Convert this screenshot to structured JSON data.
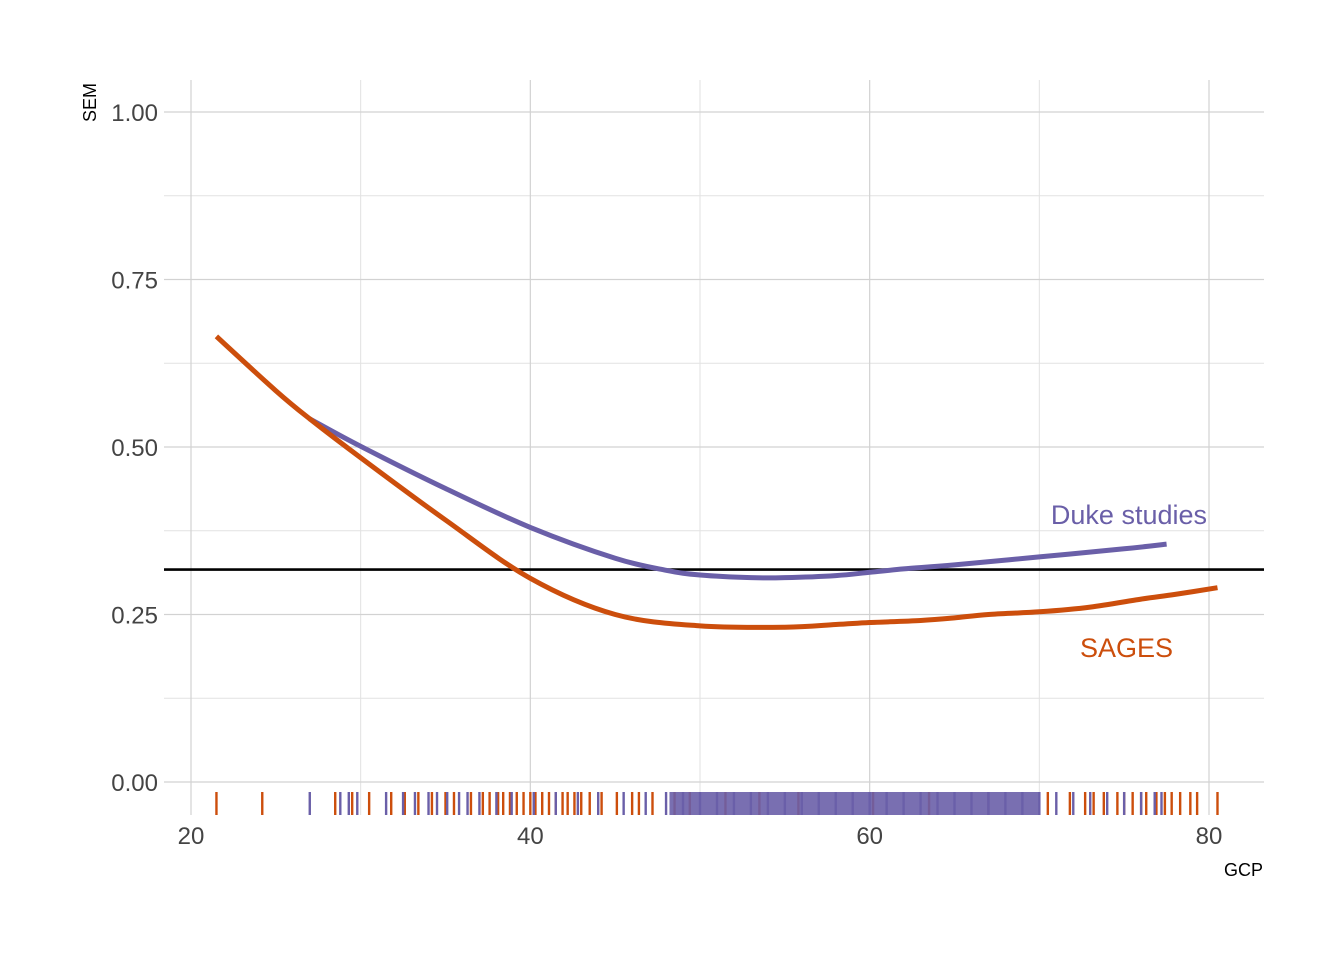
{
  "chart_data": {
    "type": "line",
    "title": "",
    "xlabel": "GCP",
    "ylabel": "SEM",
    "xlim": [
      18,
      83
    ],
    "ylim": [
      -0.04,
      1.05
    ],
    "x_ticks": [
      20,
      40,
      60,
      80
    ],
    "x_tick_labels": [
      "20",
      "40",
      "60",
      "80"
    ],
    "y_ticks": [
      0,
      0.25,
      0.5,
      0.75,
      1.0
    ],
    "y_tick_labels": [
      "0.00",
      "0.25",
      "0.50",
      "0.75",
      "1.00"
    ],
    "grid": true,
    "reference_line": {
      "y": 0.317,
      "color": "#000000"
    },
    "series": [
      {
        "name": "Duke studies",
        "color": "#6A5FA8",
        "x": [
          27.0,
          30.0,
          35.0,
          40.0,
          45.0,
          48.0,
          50.0,
          53.0,
          55.0,
          58.0,
          60.0,
          62.0,
          65.0,
          70.0,
          75.0,
          77.5
        ],
        "y": [
          0.542,
          0.501,
          0.438,
          0.38,
          0.334,
          0.316,
          0.309,
          0.305,
          0.305,
          0.308,
          0.313,
          0.318,
          0.324,
          0.336,
          0.348,
          0.355
        ],
        "rug": [
          27.0,
          28.8,
          29.3,
          29.8,
          31.5,
          32.5,
          33.2,
          34.0,
          34.5,
          35.1,
          35.8,
          36.3,
          37.0,
          38.0,
          38.9,
          40.2,
          41.5,
          42.8,
          44.0,
          45.5,
          46.8,
          48.0,
          49.0,
          50.0,
          51.0,
          52.0,
          53.0,
          54.0,
          55.0,
          56.0,
          57.0,
          58.0,
          59.0,
          60.0,
          61.0,
          62.0,
          63.0,
          64.0,
          65.0,
          66.0,
          67.0,
          68.0,
          69.0,
          70.0,
          71.0,
          72.0,
          73.0,
          74.0,
          75.0,
          76.0,
          76.8,
          77.2
        ]
      },
      {
        "name": "SAGES",
        "color": "#CC4E0C",
        "x": [
          21.5,
          25.0,
          27.0,
          30.0,
          35.0,
          40.0,
          45.0,
          50.0,
          55.0,
          58.0,
          60.0,
          63.0,
          65.0,
          67.0,
          70.0,
          73.0,
          76.0,
          78.0,
          80.5
        ],
        "y": [
          0.665,
          0.584,
          0.542,
          0.484,
          0.391,
          0.304,
          0.25,
          0.233,
          0.231,
          0.235,
          0.238,
          0.241,
          0.245,
          0.25,
          0.254,
          0.261,
          0.273,
          0.28,
          0.29
        ],
        "rug": [
          21.5,
          24.2,
          28.5,
          29.5,
          30.5,
          31.8,
          32.6,
          33.4,
          34.2,
          35.0,
          35.5,
          36.5,
          37.2,
          37.6,
          38.1,
          38.4,
          38.8,
          39.2,
          39.6,
          40.0,
          40.3,
          40.7,
          41.1,
          41.5,
          41.9,
          42.2,
          42.6,
          43.0,
          43.5,
          44.2,
          45.1,
          46.0,
          46.4,
          47.2,
          48.5,
          49.4,
          51.5,
          53.5,
          55.8,
          60.2,
          63.5,
          67.0,
          70.5,
          71.8,
          72.7,
          73.2,
          73.8,
          74.6,
          75.0,
          75.5,
          76.0,
          76.3,
          76.9,
          77.4,
          77.8,
          78.3,
          78.9,
          79.3,
          80.5
        ]
      }
    ]
  }
}
